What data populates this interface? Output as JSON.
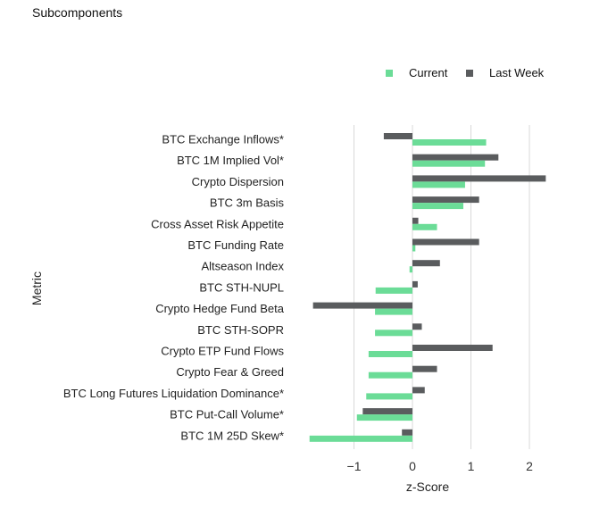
{
  "header": {
    "title": "Subcomponents"
  },
  "chart_data": {
    "type": "bar",
    "orientation": "horizontal",
    "xlabel": "z-Score",
    "ylabel": "Metric",
    "xlim": [
      -1.75,
      2.45
    ],
    "xticks": [
      -1,
      0,
      1,
      2
    ],
    "grid": "vertical",
    "legend_position": "top-right",
    "categories": [
      "BTC Exchange Inflows*",
      "BTC 1M Implied Vol*",
      "Crypto Dispersion",
      "BTC 3m Basis",
      "Cross Asset Risk Appetite",
      "BTC Funding Rate",
      "Altseason Index",
      "BTC STH-NUPL",
      "Crypto Hedge Fund Beta",
      "BTC STH-SOPR",
      "Crypto ETP Fund Flows",
      "Crypto Fear & Greed",
      "BTC Long Futures Liquidation Dominance*",
      "BTC Put-Call Volume*",
      "BTC 1M 25D Skew*"
    ],
    "series": [
      {
        "name": "Last Week",
        "color": "#5a5c5e",
        "values": [
          -0.49,
          1.47,
          2.28,
          1.14,
          0.1,
          1.14,
          0.47,
          0.09,
          -1.7,
          0.16,
          1.37,
          0.42,
          0.21,
          -0.85,
          -0.18
        ]
      },
      {
        "name": "Current",
        "color": "#6bdc97",
        "values": [
          1.26,
          1.24,
          0.9,
          0.87,
          0.42,
          0.05,
          -0.05,
          -0.63,
          -0.64,
          -0.64,
          -0.75,
          -0.75,
          -0.79,
          -0.95,
          -1.76
        ]
      }
    ]
  }
}
